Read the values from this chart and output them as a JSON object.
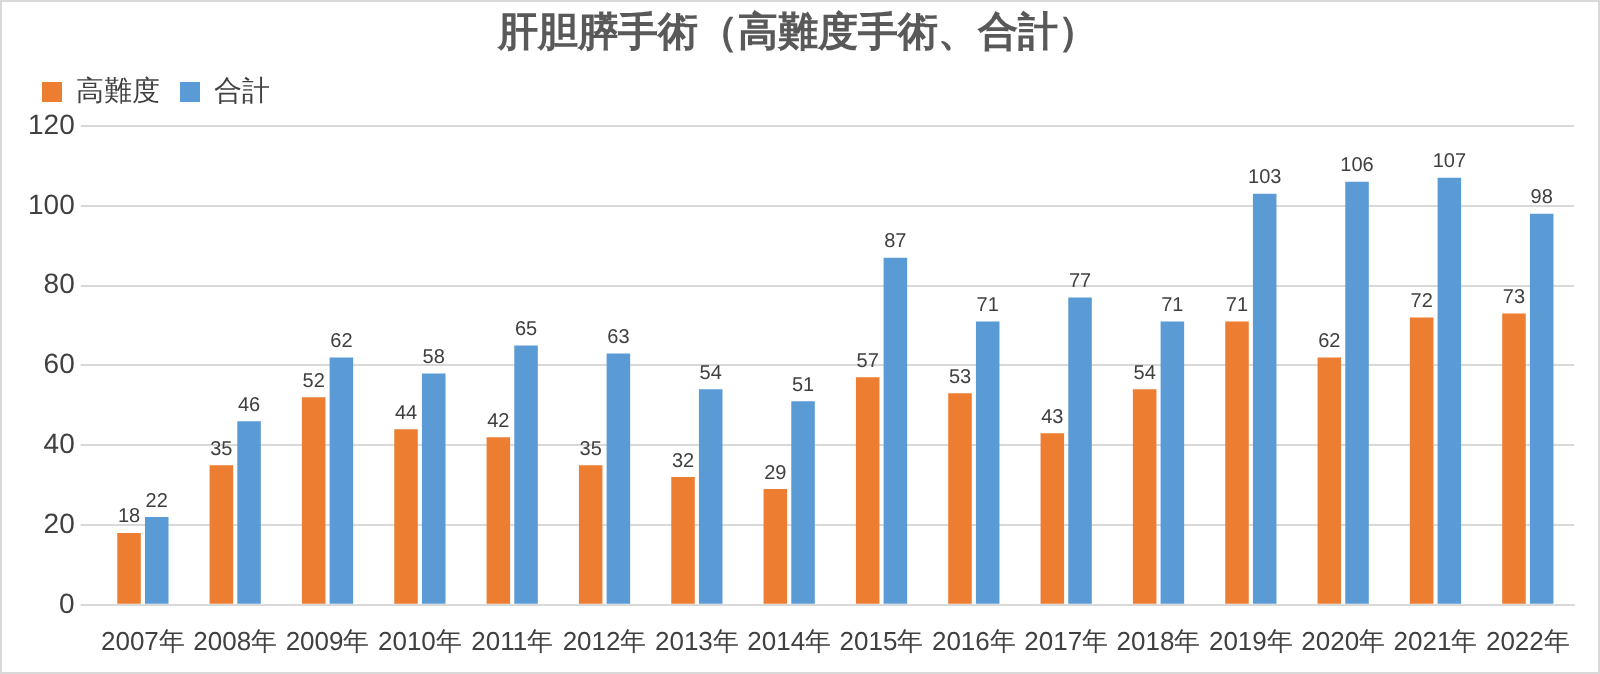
{
  "chart_data": {
    "type": "bar",
    "title": "肝胆膵手術（高難度手術、合計）",
    "categories": [
      "2007年",
      "2008年",
      "2009年",
      "2010年",
      "2011年",
      "2012年",
      "2013年",
      "2014年",
      "2015年",
      "2016年",
      "2017年",
      "2018年",
      "2019年",
      "2020年",
      "2021年",
      "2022年"
    ],
    "series": [
      {
        "name": "高難度",
        "color": "#ed7d31",
        "values": [
          18,
          35,
          52,
          44,
          42,
          35,
          32,
          29,
          57,
          53,
          43,
          54,
          71,
          62,
          72,
          73
        ]
      },
      {
        "name": "合計",
        "color": "#5b9bd5",
        "values": [
          22,
          46,
          62,
          58,
          65,
          63,
          54,
          51,
          87,
          71,
          77,
          71,
          103,
          106,
          107,
          98
        ]
      }
    ],
    "ylim": [
      0,
      120
    ],
    "yticks": [
      0,
      20,
      40,
      60,
      80,
      100,
      120
    ],
    "grid": "y",
    "legend": "top left",
    "data_labels": true
  }
}
